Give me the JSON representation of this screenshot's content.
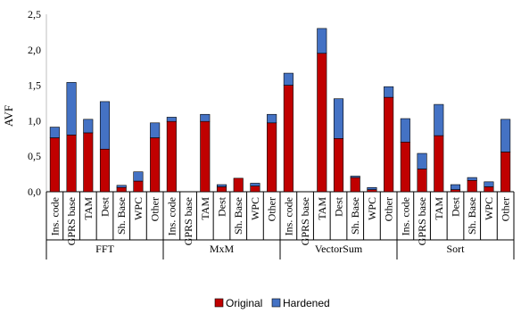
{
  "chart_data": {
    "type": "bar",
    "stacked": true,
    "ylabel": "AVF",
    "ylim": [
      0,
      2.5
    ],
    "yticks": [
      "0,0",
      "0,5",
      "1,0",
      "1,5",
      "2,0",
      "2,5"
    ],
    "ytick_values": [
      0,
      0.5,
      1.0,
      1.5,
      2.0,
      2.5
    ],
    "grid": false,
    "legend_position": "bottom",
    "groups": [
      {
        "name": "FFT",
        "categories": [
          "Ins. code",
          "GPRS base",
          "TAM",
          "Dest",
          "Sh. Base",
          "WPC",
          "Other"
        ],
        "original": [
          0.76,
          0.8,
          0.83,
          0.6,
          0.06,
          0.15,
          0.76
        ],
        "hardened": [
          0.15,
          0.74,
          0.19,
          0.67,
          0.03,
          0.13,
          0.21
        ]
      },
      {
        "name": "MxM",
        "categories": [
          "Ins. code",
          "GPRS base",
          "TAM",
          "Dest",
          "Sh. Base",
          "WPC",
          "Other"
        ],
        "original": [
          0.99,
          0,
          0.99,
          0.07,
          0.19,
          0.08,
          0.97
        ],
        "hardened": [
          0.06,
          0,
          0.1,
          0.03,
          0,
          0.04,
          0.12
        ]
      },
      {
        "name": "VectorSum",
        "categories": [
          "Ins. code",
          "GPRS base",
          "TAM",
          "Dest",
          "Sh. Base",
          "WPC",
          "Other"
        ],
        "original": [
          1.5,
          0,
          1.95,
          0.75,
          0.2,
          0.03,
          1.33
        ],
        "hardened": [
          0.17,
          0,
          0.35,
          0.56,
          0.02,
          0.03,
          0.15
        ]
      },
      {
        "name": "Sort",
        "categories": [
          "Ins. code",
          "GPRS base",
          "TAM",
          "Dest",
          "Sh. Base",
          "WPC",
          "Other"
        ],
        "original": [
          0.7,
          0.32,
          0.79,
          0.03,
          0.16,
          0.07,
          0.56
        ],
        "hardened": [
          0.33,
          0.22,
          0.44,
          0.07,
          0.04,
          0.07,
          0.46
        ]
      }
    ],
    "series": [
      {
        "name": "Original",
        "color": "#c00000"
      },
      {
        "name": "Hardened",
        "color": "#4472c4"
      }
    ]
  }
}
